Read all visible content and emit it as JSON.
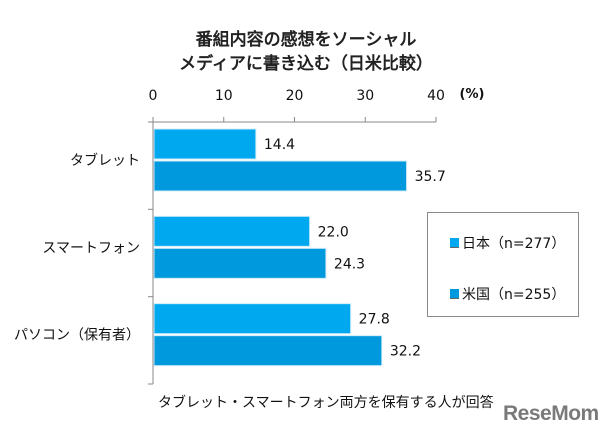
{
  "chart_data": {
    "type": "bar",
    "orientation": "horizontal",
    "title": "番組内容の感想をソーシャルメディアに書き込む（日米比較）",
    "title_lines": [
      "番組内容の感想をソーシャル",
      "メディアに書き込む（日米比較）"
    ],
    "xlabel": "",
    "unit_label": "(%)",
    "xlim": [
      0,
      40
    ],
    "xticks": [
      0,
      10,
      20,
      30,
      40
    ],
    "categories": [
      "タブレット",
      "スマートフォン",
      "パソコン（保有者）"
    ],
    "series": [
      {
        "name": "日本（n=277）",
        "color": "#00a8f0",
        "values": [
          14.4,
          22.0,
          27.8
        ],
        "labels": [
          "14.4",
          "22.0",
          "27.8"
        ]
      },
      {
        "name": "米国（n=255）",
        "color": "#0099dd",
        "values": [
          35.7,
          24.3,
          32.2
        ],
        "labels": [
          "35.7",
          "24.3",
          "32.2"
        ]
      }
    ],
    "legend_position": "right",
    "grid": false,
    "footnote": "タブレット・スマートフォン両方を保有する人が回答"
  },
  "branding": {
    "logo_text": "ReseMom"
  }
}
